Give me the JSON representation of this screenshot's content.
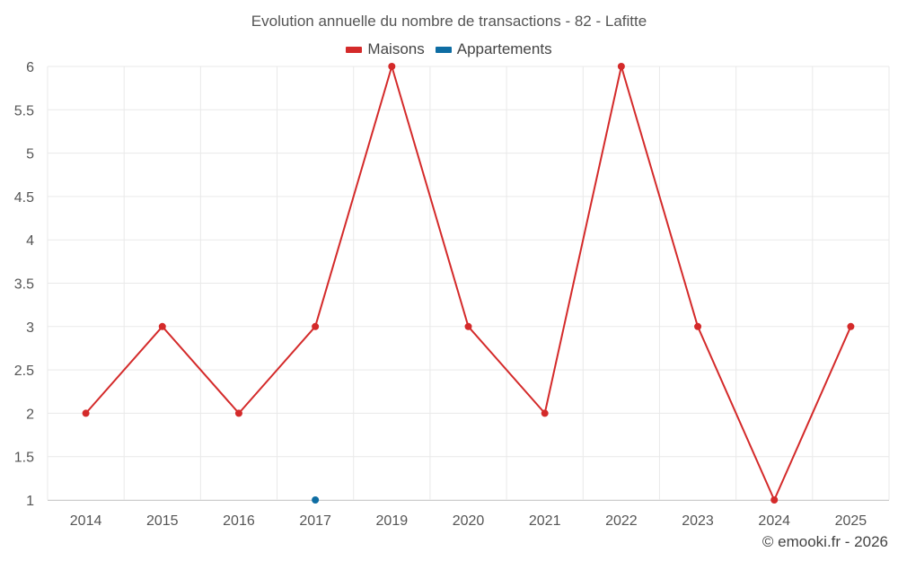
{
  "chart_data": {
    "type": "line",
    "title": "Evolution annuelle du nombre de transactions - 82 - Lafitte",
    "categories": [
      "2014",
      "2015",
      "2016",
      "2017",
      "2019",
      "2020",
      "2021",
      "2022",
      "2023",
      "2024",
      "2025"
    ],
    "series": [
      {
        "name": "Maisons",
        "color": "#d42a2a",
        "values": [
          2,
          3,
          2,
          3,
          6,
          3,
          2,
          6,
          3,
          1,
          3
        ]
      },
      {
        "name": "Appartements",
        "color": "#0e6da3",
        "values": [
          null,
          null,
          null,
          1,
          null,
          null,
          null,
          null,
          null,
          null,
          null
        ]
      }
    ],
    "ylim": [
      1,
      6
    ],
    "yticks": [
      "1",
      "1.5",
      "2",
      "2.5",
      "3",
      "3.5",
      "4",
      "4.5",
      "5",
      "5.5",
      "6"
    ],
    "grid": true,
    "legend_position": "top"
  },
  "credits": "© emooki.fr - 2026"
}
